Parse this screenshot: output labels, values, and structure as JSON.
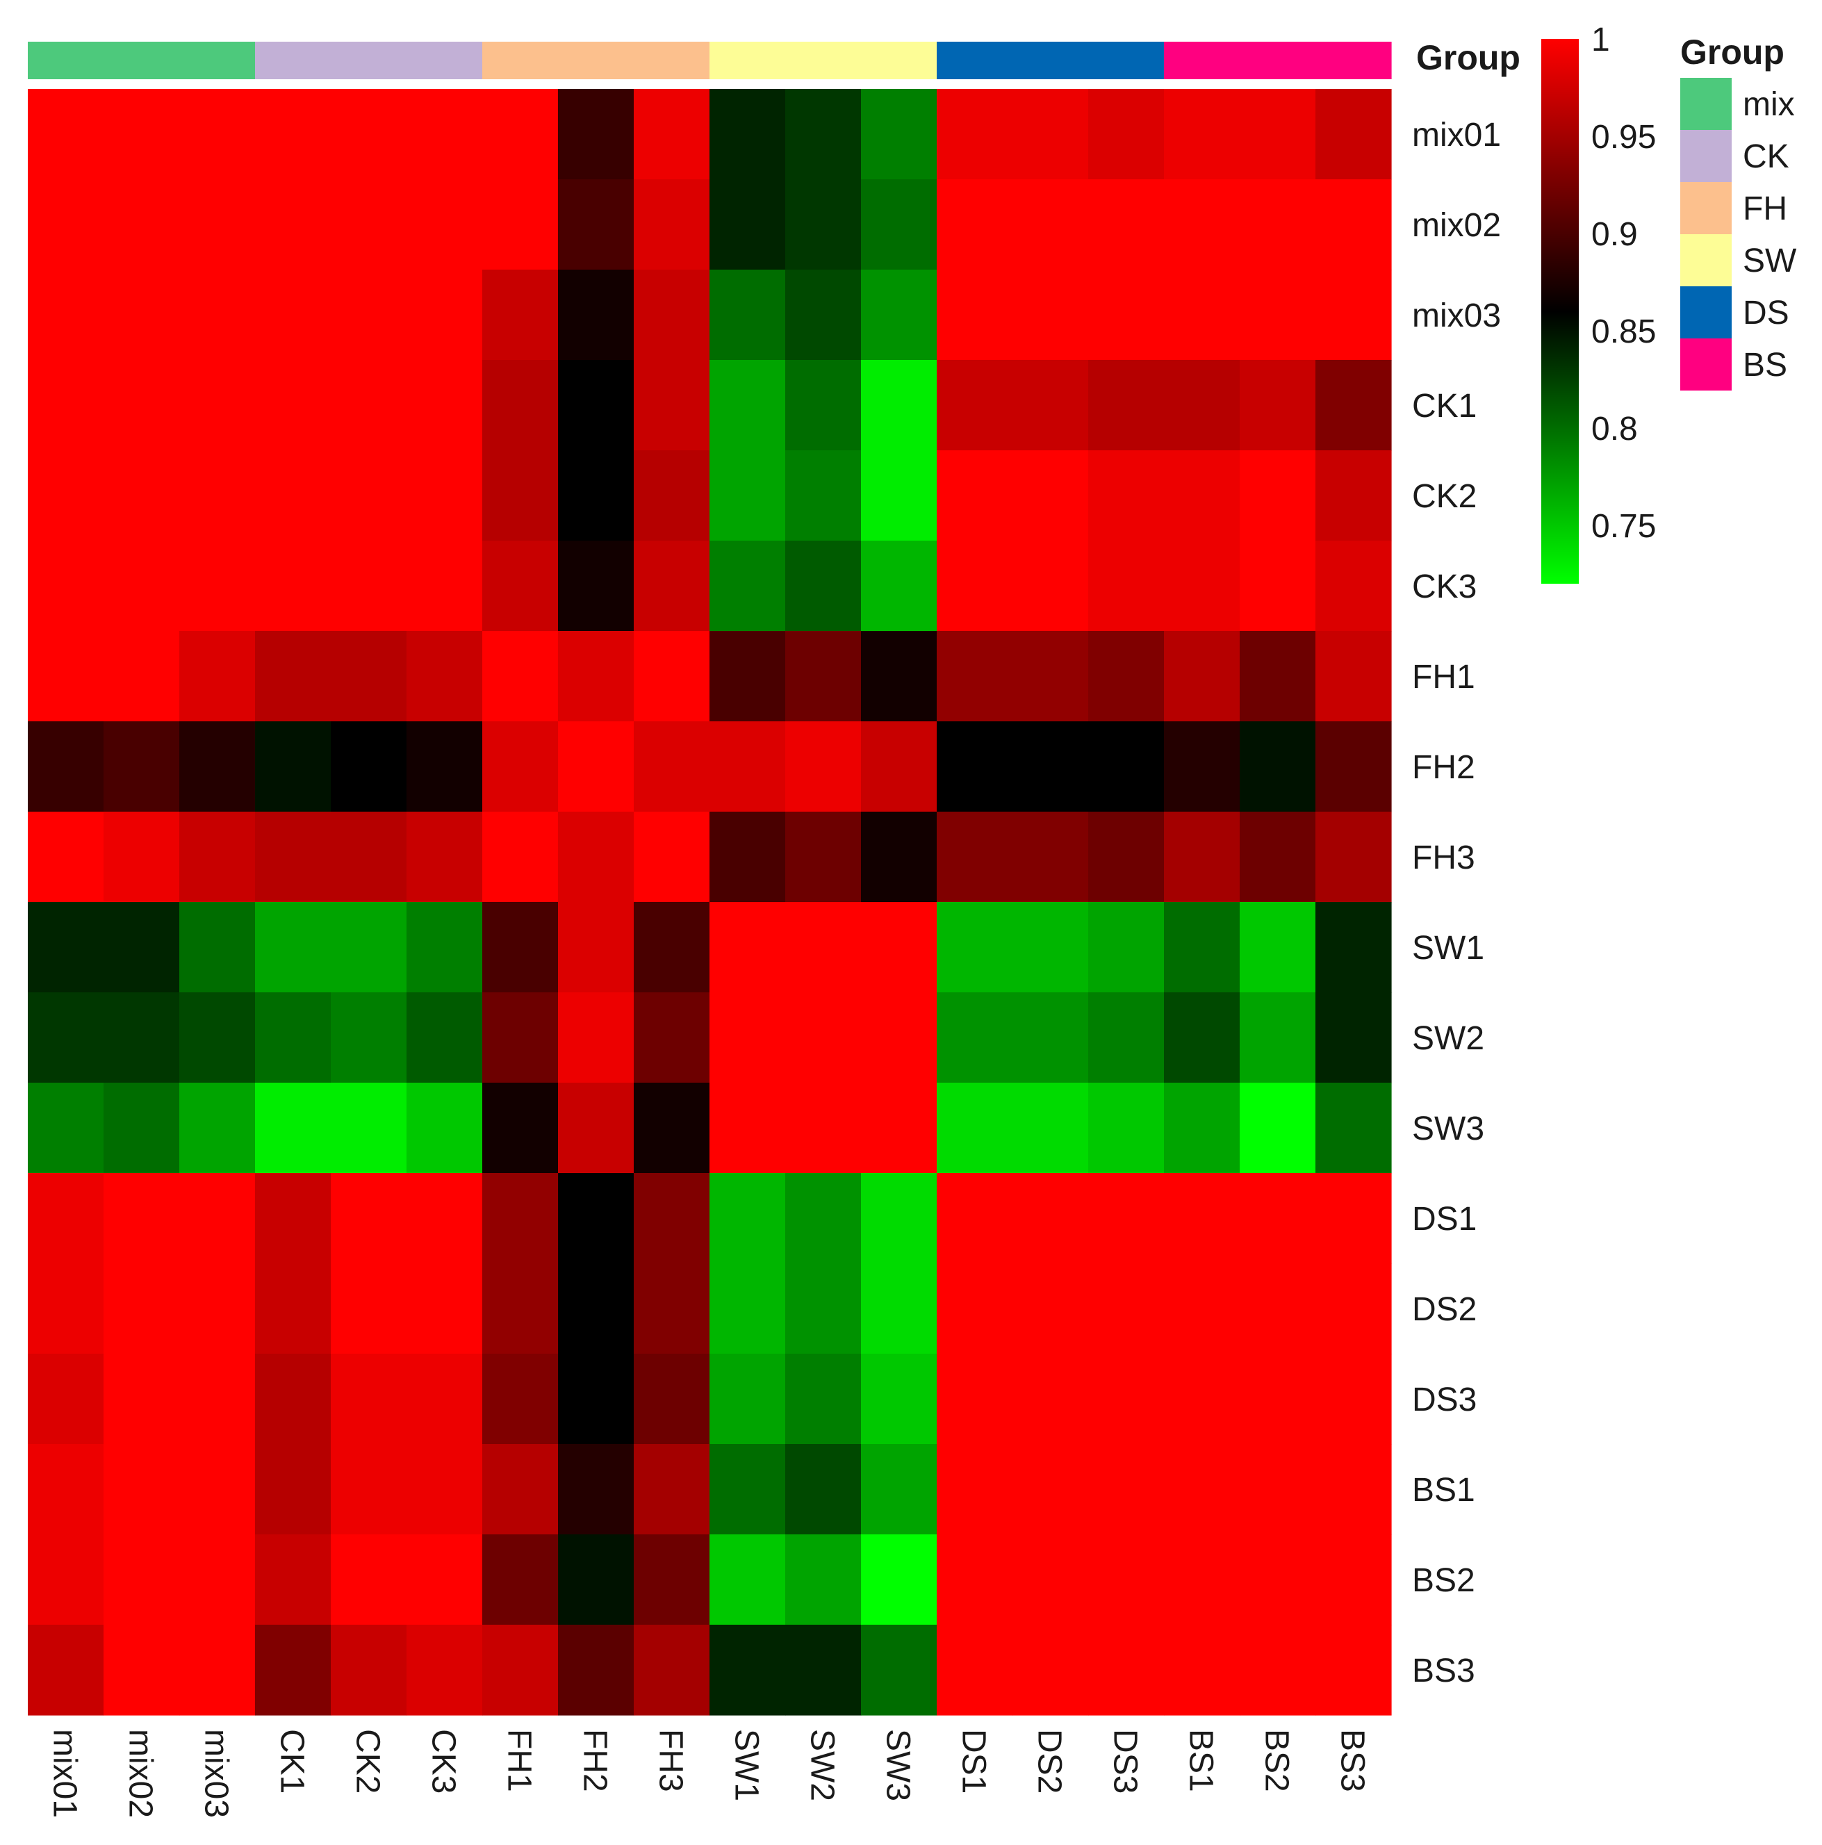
{
  "chart_data": {
    "type": "heatmap",
    "title": "",
    "rows": [
      "mix01",
      "mix02",
      "mix03",
      "CK1",
      "CK2",
      "CK3",
      "FH1",
      "FH2",
      "FH3",
      "SW1",
      "SW2",
      "SW3",
      "DS1",
      "DS2",
      "DS3",
      "BS1",
      "BS2",
      "BS3"
    ],
    "columns": [
      "mix01",
      "mix02",
      "mix03",
      "CK1",
      "CK2",
      "CK3",
      "FH1",
      "FH2",
      "FH3",
      "SW1",
      "SW2",
      "SW3",
      "DS1",
      "DS2",
      "DS3",
      "BS1",
      "BS2",
      "BS3"
    ],
    "values": [
      [
        1.0,
        1.0,
        1.0,
        1.0,
        1.0,
        1.0,
        1.0,
        0.89,
        0.99,
        0.84,
        0.83,
        0.79,
        0.99,
        0.99,
        0.98,
        0.99,
        0.99,
        0.97
      ],
      [
        1.0,
        1.0,
        1.0,
        1.0,
        1.0,
        1.0,
        1.0,
        0.9,
        0.98,
        0.84,
        0.83,
        0.8,
        1.0,
        1.0,
        1.0,
        1.0,
        1.0,
        1.0
      ],
      [
        1.0,
        1.0,
        1.0,
        1.0,
        1.0,
        1.0,
        0.97,
        0.87,
        0.97,
        0.8,
        0.82,
        0.78,
        1.0,
        1.0,
        1.0,
        1.0,
        1.0,
        1.0
      ],
      [
        1.0,
        1.0,
        1.0,
        1.0,
        1.0,
        1.0,
        0.96,
        0.86,
        0.97,
        0.77,
        0.8,
        0.73,
        0.97,
        0.97,
        0.96,
        0.96,
        0.97,
        0.93
      ],
      [
        1.0,
        1.0,
        1.0,
        1.0,
        1.0,
        1.0,
        0.96,
        0.86,
        0.96,
        0.77,
        0.79,
        0.73,
        1.0,
        1.0,
        0.99,
        0.99,
        1.0,
        0.97
      ],
      [
        1.0,
        1.0,
        1.0,
        1.0,
        1.0,
        1.0,
        0.97,
        0.87,
        0.97,
        0.79,
        0.81,
        0.76,
        1.0,
        1.0,
        0.99,
        0.99,
        1.0,
        0.98
      ],
      [
        1.0,
        1.0,
        0.98,
        0.96,
        0.96,
        0.97,
        1.0,
        0.98,
        1.0,
        0.9,
        0.92,
        0.87,
        0.94,
        0.94,
        0.93,
        0.96,
        0.92,
        0.97
      ],
      [
        0.89,
        0.9,
        0.88,
        0.85,
        0.86,
        0.87,
        0.98,
        1.0,
        0.98,
        0.98,
        0.99,
        0.97,
        0.86,
        0.86,
        0.86,
        0.88,
        0.85,
        0.91
      ],
      [
        1.0,
        0.99,
        0.97,
        0.96,
        0.96,
        0.97,
        1.0,
        0.98,
        1.0,
        0.9,
        0.92,
        0.87,
        0.93,
        0.93,
        0.92,
        0.95,
        0.92,
        0.95
      ],
      [
        0.84,
        0.84,
        0.8,
        0.77,
        0.77,
        0.79,
        0.9,
        0.98,
        0.9,
        1.0,
        1.0,
        1.0,
        0.76,
        0.76,
        0.77,
        0.8,
        0.75,
        0.84
      ],
      [
        0.83,
        0.83,
        0.82,
        0.8,
        0.79,
        0.81,
        0.92,
        0.99,
        0.92,
        1.0,
        1.0,
        1.0,
        0.78,
        0.78,
        0.79,
        0.82,
        0.77,
        0.84
      ],
      [
        0.79,
        0.8,
        0.77,
        0.73,
        0.73,
        0.75,
        0.87,
        0.97,
        0.87,
        1.0,
        1.0,
        1.0,
        0.74,
        0.74,
        0.75,
        0.77,
        0.72,
        0.8
      ],
      [
        0.99,
        1.0,
        1.0,
        0.97,
        1.0,
        1.0,
        0.94,
        0.86,
        0.93,
        0.76,
        0.78,
        0.74,
        1.0,
        1.0,
        1.0,
        1.0,
        1.0,
        1.0
      ],
      [
        0.99,
        1.0,
        1.0,
        0.97,
        1.0,
        1.0,
        0.94,
        0.86,
        0.93,
        0.76,
        0.78,
        0.74,
        1.0,
        1.0,
        1.0,
        1.0,
        1.0,
        1.0
      ],
      [
        0.98,
        1.0,
        1.0,
        0.96,
        0.99,
        0.99,
        0.93,
        0.86,
        0.92,
        0.77,
        0.79,
        0.75,
        1.0,
        1.0,
        1.0,
        1.0,
        1.0,
        1.0
      ],
      [
        0.99,
        1.0,
        1.0,
        0.96,
        0.99,
        0.99,
        0.96,
        0.88,
        0.95,
        0.8,
        0.82,
        0.77,
        1.0,
        1.0,
        1.0,
        1.0,
        1.0,
        1.0
      ],
      [
        0.99,
        1.0,
        1.0,
        0.97,
        1.0,
        1.0,
        0.92,
        0.85,
        0.92,
        0.75,
        0.77,
        0.72,
        1.0,
        1.0,
        1.0,
        1.0,
        1.0,
        1.0
      ],
      [
        0.97,
        1.0,
        1.0,
        0.93,
        0.97,
        0.98,
        0.97,
        0.91,
        0.95,
        0.84,
        0.84,
        0.8,
        1.0,
        1.0,
        1.0,
        1.0,
        1.0,
        1.0
      ]
    ],
    "colorscale": {
      "min": 0.72,
      "mid": 0.86,
      "max": 1.0,
      "low_color": "#00ff00",
      "mid_color": "#000000",
      "high_color": "#ff0000"
    },
    "colorbar_ticks": [
      1,
      0.95,
      0.9,
      0.85,
      0.8,
      0.75
    ],
    "colorbar_tick_labels": [
      "1",
      "0.95",
      "0.9",
      "0.85",
      "0.8",
      "0.75"
    ],
    "group_annotation": {
      "title": "Group",
      "groups": [
        {
          "name": "mix",
          "color": "#4dc97c"
        },
        {
          "name": "CK",
          "color": "#c2b0d6"
        },
        {
          "name": "FH",
          "color": "#fcc08d"
        },
        {
          "name": "SW",
          "color": "#fdfd96"
        },
        {
          "name": "DS",
          "color": "#0066b3"
        },
        {
          "name": "BS",
          "color": "#ff0080"
        }
      ],
      "column_groups": [
        "mix",
        "mix",
        "mix",
        "CK",
        "CK",
        "CK",
        "FH",
        "FH",
        "FH",
        "SW",
        "SW",
        "SW",
        "DS",
        "DS",
        "DS",
        "BS",
        "BS",
        "BS"
      ]
    },
    "legend_title": "Group",
    "legend_position": "right"
  }
}
